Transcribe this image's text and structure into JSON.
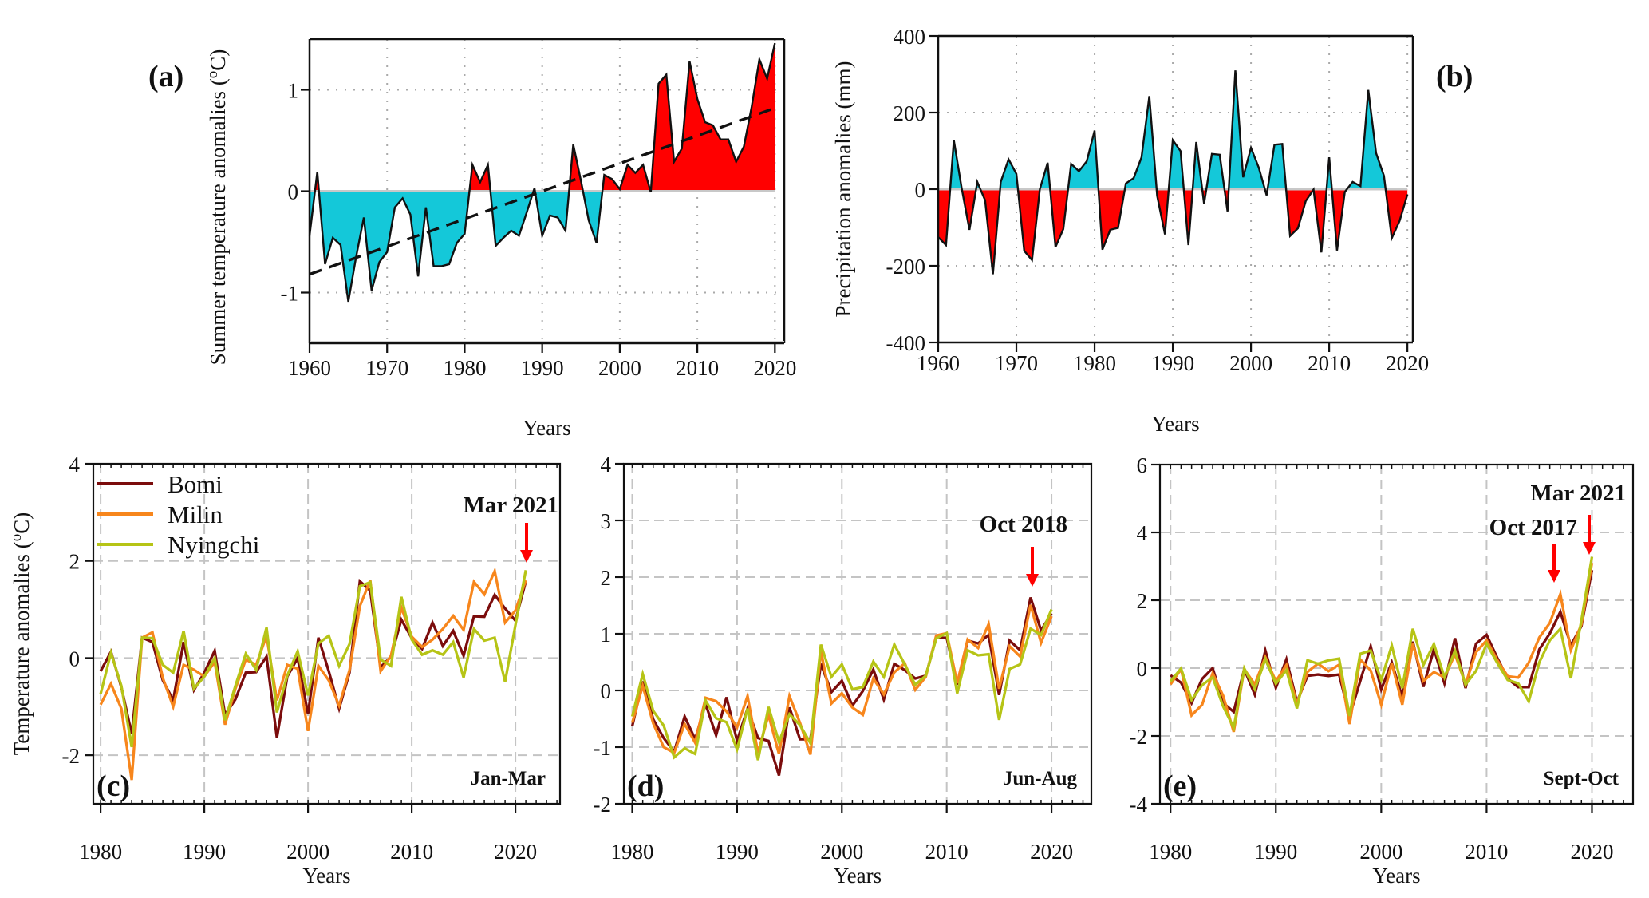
{
  "chart_data": [
    {
      "id": "a",
      "type": "area",
      "panel_label": "(a)",
      "title": "",
      "xlabel": "Years",
      "ylabel": "Summer temperature anomalies (°C)",
      "ylabel_parts": {
        "main": "Summer temperature anomalies (",
        "sup": "o",
        "unit": "C)"
      },
      "xlim": [
        1960,
        2021.2
      ],
      "ylim": [
        -1.5,
        1.5
      ],
      "xticks": [
        1960,
        1970,
        1980,
        1990,
        2000,
        2010,
        2020
      ],
      "yticks": [
        -1,
        0,
        1
      ],
      "ytick_labels": [
        "-1",
        "0",
        "1"
      ],
      "grid": "dotted",
      "fill_positive_color": "#ff0000",
      "fill_negative_color": "#14c8d9",
      "x": [
        1960,
        1961,
        1962,
        1963,
        1964,
        1965,
        1966,
        1967,
        1968,
        1969,
        1970,
        1971,
        1972,
        1973,
        1974,
        1975,
        1976,
        1977,
        1978,
        1979,
        1980,
        1981,
        1982,
        1983,
        1984,
        1985,
        1986,
        1987,
        1988,
        1989,
        1990,
        1991,
        1992,
        1993,
        1994,
        1995,
        1996,
        1997,
        1998,
        1999,
        2000,
        2001,
        2002,
        2003,
        2004,
        2005,
        2006,
        2007,
        2008,
        2009,
        2010,
        2011,
        2012,
        2013,
        2014,
        2015,
        2016,
        2017,
        2018,
        2019,
        2020
      ],
      "values": [
        -0.44,
        0.19,
        -0.72,
        -0.46,
        -0.53,
        -1.09,
        -0.65,
        -0.26,
        -0.98,
        -0.7,
        -0.6,
        -0.16,
        -0.07,
        -0.23,
        -0.84,
        -0.16,
        -0.74,
        -0.74,
        -0.72,
        -0.51,
        -0.42,
        0.26,
        0.09,
        0.26,
        -0.54,
        -0.46,
        -0.39,
        -0.44,
        -0.21,
        0.03,
        -0.44,
        -0.24,
        -0.26,
        -0.39,
        0.46,
        0.1,
        -0.29,
        -0.51,
        0.16,
        0.12,
        0.02,
        0.26,
        0.18,
        0.26,
        -0.01,
        1.06,
        1.15,
        0.29,
        0.42,
        1.28,
        0.91,
        0.68,
        0.65,
        0.51,
        0.51,
        0.29,
        0.44,
        0.83,
        1.3,
        1.11,
        1.46
      ],
      "trend": {
        "x": [
          1960,
          2020
        ],
        "y": [
          -0.82,
          0.82
        ],
        "style": "dashed"
      }
    },
    {
      "id": "b",
      "type": "area",
      "panel_label": "(b)",
      "title": "",
      "xlabel": "Years",
      "ylabel": "Precipitation anomalies (mm)",
      "xlim": [
        1960,
        2020.7
      ],
      "ylim": [
        -400,
        400
      ],
      "xticks": [
        1960,
        1970,
        1980,
        1990,
        2000,
        2010,
        2020
      ],
      "yticks": [
        -400,
        -200,
        0,
        200,
        400
      ],
      "ytick_labels": [
        "-400",
        "-200",
        "0",
        "200",
        "400"
      ],
      "grid": "dotted",
      "fill_positive_color": "#14c8d9",
      "fill_negative_color": "#ff0000",
      "x": [
        1960,
        1961,
        1962,
        1963,
        1964,
        1965,
        1966,
        1967,
        1968,
        1969,
        1970,
        1971,
        1972,
        1973,
        1974,
        1975,
        1976,
        1977,
        1978,
        1979,
        1980,
        1981,
        1982,
        1983,
        1984,
        1985,
        1986,
        1987,
        1988,
        1989,
        1990,
        1991,
        1992,
        1993,
        1994,
        1995,
        1996,
        1997,
        1998,
        1999,
        2000,
        2001,
        2002,
        2003,
        2004,
        2005,
        2006,
        2007,
        2008,
        2009,
        2010,
        2011,
        2012,
        2013,
        2014,
        2015,
        2016,
        2017,
        2018,
        2019,
        2020
      ],
      "values": [
        -125,
        -146,
        128,
        3,
        -106,
        19,
        -29,
        -222,
        19,
        78,
        40,
        -161,
        -185,
        0,
        69,
        -151,
        -104,
        66,
        47,
        73,
        153,
        -158,
        -106,
        -101,
        15,
        29,
        83,
        243,
        -17,
        -118,
        128,
        99,
        -146,
        123,
        -38,
        92,
        90,
        -58,
        310,
        31,
        108,
        56,
        -16,
        116,
        118,
        -122,
        -102,
        -31,
        -1,
        -165,
        83,
        -160,
        -7,
        19,
        8,
        259,
        94,
        35,
        -128,
        -83,
        -14
      ]
    },
    {
      "id": "c",
      "type": "line",
      "panel_label": "(c)",
      "season": "Jan-Mar",
      "xlabel": "Years",
      "ylabel": "Temperature anomalies (°C)",
      "ylabel_parts": {
        "main": "Temperature anomalies (",
        "sup": "o",
        "unit": "C)"
      },
      "xlim": [
        1979.3,
        2024.3
      ],
      "ylim": [
        -3,
        4
      ],
      "xticks": [
        1980,
        1990,
        2000,
        2010,
        2020
      ],
      "yticks": [
        -2,
        0,
        2,
        4
      ],
      "ytick_labels": [
        "-2",
        "0",
        "2",
        "4"
      ],
      "grid": "dashed",
      "legend": {
        "position": "top-left",
        "entries": [
          "Bomi",
          "Milin",
          "Nyingchi"
        ]
      },
      "annotations": [
        {
          "text": "Mar 2021",
          "x": 2021,
          "arrow": true,
          "arrow_color": "#ff0000"
        }
      ],
      "x": [
        1980,
        1981,
        1982,
        1983,
        1984,
        1985,
        1986,
        1987,
        1988,
        1989,
        1990,
        1991,
        1992,
        1993,
        1994,
        1995,
        1996,
        1997,
        1998,
        1999,
        2000,
        2001,
        2002,
        2003,
        2004,
        2005,
        2006,
        2007,
        2008,
        2009,
        2010,
        2011,
        2012,
        2013,
        2014,
        2015,
        2016,
        2017,
        2018,
        2019,
        2020,
        2021
      ],
      "series": [
        {
          "name": "Bomi",
          "color": "#7b0c0c",
          "values": [
            -0.27,
            0.13,
            -0.6,
            -1.56,
            0.42,
            0.33,
            -0.46,
            -0.87,
            0.33,
            -0.66,
            -0.3,
            0.15,
            -1.17,
            -0.85,
            -0.3,
            -0.29,
            0.03,
            -1.64,
            -0.38,
            0.0,
            -1.15,
            0.42,
            -0.27,
            -1.04,
            -0.3,
            1.58,
            1.39,
            -0.19,
            0.03,
            0.79,
            0.41,
            0.19,
            0.73,
            0.25,
            0.56,
            0.05,
            0.86,
            0.85,
            1.3,
            1.02,
            0.77,
            1.58
          ]
        },
        {
          "name": "Milin",
          "color": "#f7861c",
          "values": [
            -0.96,
            -0.53,
            -1.04,
            -2.51,
            0.42,
            0.53,
            -0.41,
            -1.0,
            -0.14,
            -0.24,
            -0.38,
            -0.08,
            -1.37,
            -0.63,
            -0.03,
            -0.14,
            0.46,
            -0.87,
            -0.14,
            -0.22,
            -1.5,
            -0.16,
            -0.46,
            -0.98,
            -0.25,
            1.07,
            1.6,
            -0.27,
            0.05,
            1.04,
            0.44,
            0.23,
            0.38,
            0.6,
            0.87,
            0.58,
            1.57,
            1.31,
            1.79,
            0.73,
            0.98,
            1.6
          ]
        },
        {
          "name": "Nyingchi",
          "color": "#b6c416",
          "values": [
            -0.74,
            0.11,
            -0.57,
            -1.83,
            0.42,
            0.41,
            -0.14,
            -0.3,
            0.56,
            -0.63,
            -0.38,
            0.0,
            -1.28,
            -0.57,
            0.09,
            -0.24,
            0.63,
            -1.12,
            -0.36,
            0.14,
            -0.77,
            0.3,
            0.46,
            -0.16,
            0.29,
            1.48,
            1.56,
            -0.03,
            -0.16,
            1.26,
            0.38,
            0.07,
            0.16,
            0.07,
            0.33,
            -0.4,
            0.6,
            0.36,
            0.42,
            -0.49,
            0.68,
            1.81
          ]
        }
      ]
    },
    {
      "id": "d",
      "type": "line",
      "panel_label": "(d)",
      "season": "Jun-Aug",
      "xlabel": "Years",
      "ylabel": "",
      "xlim": [
        1979.2,
        2023.8
      ],
      "ylim": [
        -2,
        4
      ],
      "xticks": [
        1980,
        1990,
        2000,
        2010,
        2020
      ],
      "yticks": [
        -2,
        -1,
        0,
        1,
        2,
        3,
        4
      ],
      "ytick_labels": [
        "-2",
        "-1",
        "0",
        "1",
        "2",
        "3",
        "4"
      ],
      "grid": "dashed",
      "annotations": [
        {
          "text": "Oct 2018",
          "x": 2018,
          "arrow": true,
          "arrow_color": "#ff0000"
        }
      ],
      "x": [
        1980,
        1981,
        1982,
        1983,
        1984,
        1985,
        1986,
        1987,
        1988,
        1989,
        1990,
        1991,
        1992,
        1993,
        1994,
        1995,
        1996,
        1997,
        1998,
        1999,
        2000,
        2001,
        2002,
        2003,
        2004,
        2005,
        2006,
        2007,
        2008,
        2009,
        2010,
        2011,
        2012,
        2013,
        2014,
        2015,
        2016,
        2017,
        2018,
        2019,
        2020
      ],
      "series": [
        {
          "name": "Bomi",
          "color": "#7b0c0c",
          "values": [
            -0.63,
            0.16,
            -0.51,
            -0.84,
            -1.08,
            -0.46,
            -0.86,
            -0.24,
            -0.79,
            -0.12,
            -0.89,
            -0.32,
            -0.84,
            -0.89,
            -1.5,
            -0.3,
            -0.86,
            -0.86,
            0.47,
            -0.03,
            0.17,
            -0.27,
            -0.01,
            0.37,
            -0.16,
            0.47,
            0.36,
            0.21,
            0.26,
            0.93,
            0.93,
            0.1,
            0.88,
            0.83,
            0.98,
            -0.08,
            0.88,
            0.71,
            1.64,
            1.06,
            1.36
          ]
        },
        {
          "name": "Milin",
          "color": "#f7861c",
          "values": [
            -0.57,
            0.08,
            -0.58,
            -1.0,
            -1.1,
            -0.59,
            -0.92,
            -0.13,
            -0.19,
            -0.37,
            -0.65,
            -0.1,
            -1.1,
            -0.43,
            -1.12,
            -0.1,
            -0.57,
            -1.13,
            0.69,
            -0.23,
            -0.05,
            -0.3,
            -0.43,
            0.21,
            -0.07,
            0.32,
            0.48,
            0.01,
            0.24,
            0.97,
            1.01,
            0.13,
            0.9,
            0.75,
            1.17,
            0.03,
            0.78,
            0.6,
            1.51,
            0.84,
            1.31
          ]
        },
        {
          "name": "Nyingchi",
          "color": "#b6c416",
          "values": [
            -0.46,
            0.29,
            -0.36,
            -0.62,
            -1.18,
            -1.02,
            -1.12,
            -0.18,
            -0.49,
            -0.56,
            -1.04,
            -0.32,
            -1.23,
            -0.29,
            -0.91,
            -0.42,
            -0.61,
            -0.93,
            0.81,
            0.24,
            0.46,
            0.02,
            0.06,
            0.51,
            0.24,
            0.81,
            0.46,
            0.1,
            0.26,
            0.92,
            1.01,
            -0.05,
            0.71,
            0.62,
            0.64,
            -0.52,
            0.38,
            0.46,
            1.09,
            0.98,
            1.43
          ]
        }
      ]
    },
    {
      "id": "e",
      "type": "line",
      "panel_label": "(e)",
      "season": "Sept-Oct",
      "xlabel": "Years",
      "ylabel": "",
      "xlim": [
        1979.0,
        2023.9
      ],
      "ylim": [
        -4,
        6
      ],
      "xticks": [
        1980,
        1990,
        2000,
        2010,
        2020
      ],
      "yticks": [
        -4,
        -2,
        0,
        2,
        4,
        6
      ],
      "ytick_labels": [
        "-4",
        "-2",
        "0",
        "2",
        "4",
        "6"
      ],
      "grid": "dashed",
      "annotations": [
        {
          "text": "Oct 2017",
          "x": 2017,
          "arrow": true,
          "arrow_color": "#ff0000"
        },
        {
          "text": "Mar 2021",
          "x": 2020,
          "arrow": true,
          "arrow_color": "#ff0000"
        }
      ],
      "x": [
        1980,
        1981,
        1982,
        1983,
        1984,
        1985,
        1986,
        1987,
        1988,
        1989,
        1990,
        1991,
        1992,
        1993,
        1994,
        1995,
        1996,
        1997,
        1998,
        1999,
        2000,
        2001,
        2002,
        2003,
        2004,
        2005,
        2006,
        2007,
        2008,
        2009,
        2010,
        2011,
        2012,
        2013,
        2014,
        2015,
        2016,
        2017,
        2018,
        2019,
        2020
      ],
      "series": [
        {
          "name": "Bomi",
          "color": "#7b0c0c",
          "values": [
            -0.21,
            -0.43,
            -1.03,
            -0.32,
            0.0,
            -1.03,
            -1.29,
            -0.03,
            -0.78,
            0.52,
            -0.58,
            0.26,
            -1.0,
            -0.23,
            -0.19,
            -0.23,
            -0.19,
            -1.41,
            -0.39,
            0.64,
            -0.63,
            0.17,
            -0.86,
            0.78,
            -0.55,
            0.56,
            -0.45,
            0.88,
            -0.59,
            0.72,
            0.98,
            0.31,
            -0.31,
            -0.56,
            -0.56,
            0.55,
            1.02,
            1.66,
            0.67,
            1.24,
            2.89
          ]
        },
        {
          "name": "Milin",
          "color": "#f7861c",
          "values": [
            -0.48,
            -0.03,
            -1.39,
            -1.08,
            -0.15,
            -0.82,
            -1.88,
            -0.03,
            -0.48,
            0.32,
            -0.39,
            0.09,
            -1.06,
            -0.11,
            0.13,
            -0.09,
            0.1,
            -1.65,
            0.26,
            -0.07,
            -1.08,
            0.14,
            -1.08,
            0.72,
            -0.38,
            -0.12,
            -0.27,
            0.41,
            -0.47,
            0.47,
            0.82,
            0.24,
            -0.24,
            -0.28,
            0.16,
            0.9,
            1.33,
            2.18,
            0.53,
            1.29,
            3.1
          ]
        },
        {
          "name": "Nyingchi",
          "color": "#b6c416",
          "values": [
            -0.39,
            -0.01,
            -0.94,
            -0.5,
            -0.27,
            -1.13,
            -1.76,
            -0.01,
            -0.62,
            0.26,
            -0.46,
            -0.06,
            -1.19,
            0.23,
            0.13,
            0.23,
            0.28,
            -1.41,
            0.42,
            0.52,
            -0.35,
            0.67,
            -0.59,
            1.16,
            0.09,
            0.71,
            -0.27,
            0.51,
            -0.49,
            -0.08,
            0.72,
            0.16,
            -0.35,
            -0.45,
            -0.98,
            0.17,
            0.82,
            1.16,
            -0.3,
            1.41,
            3.28
          ]
        }
      ]
    }
  ]
}
